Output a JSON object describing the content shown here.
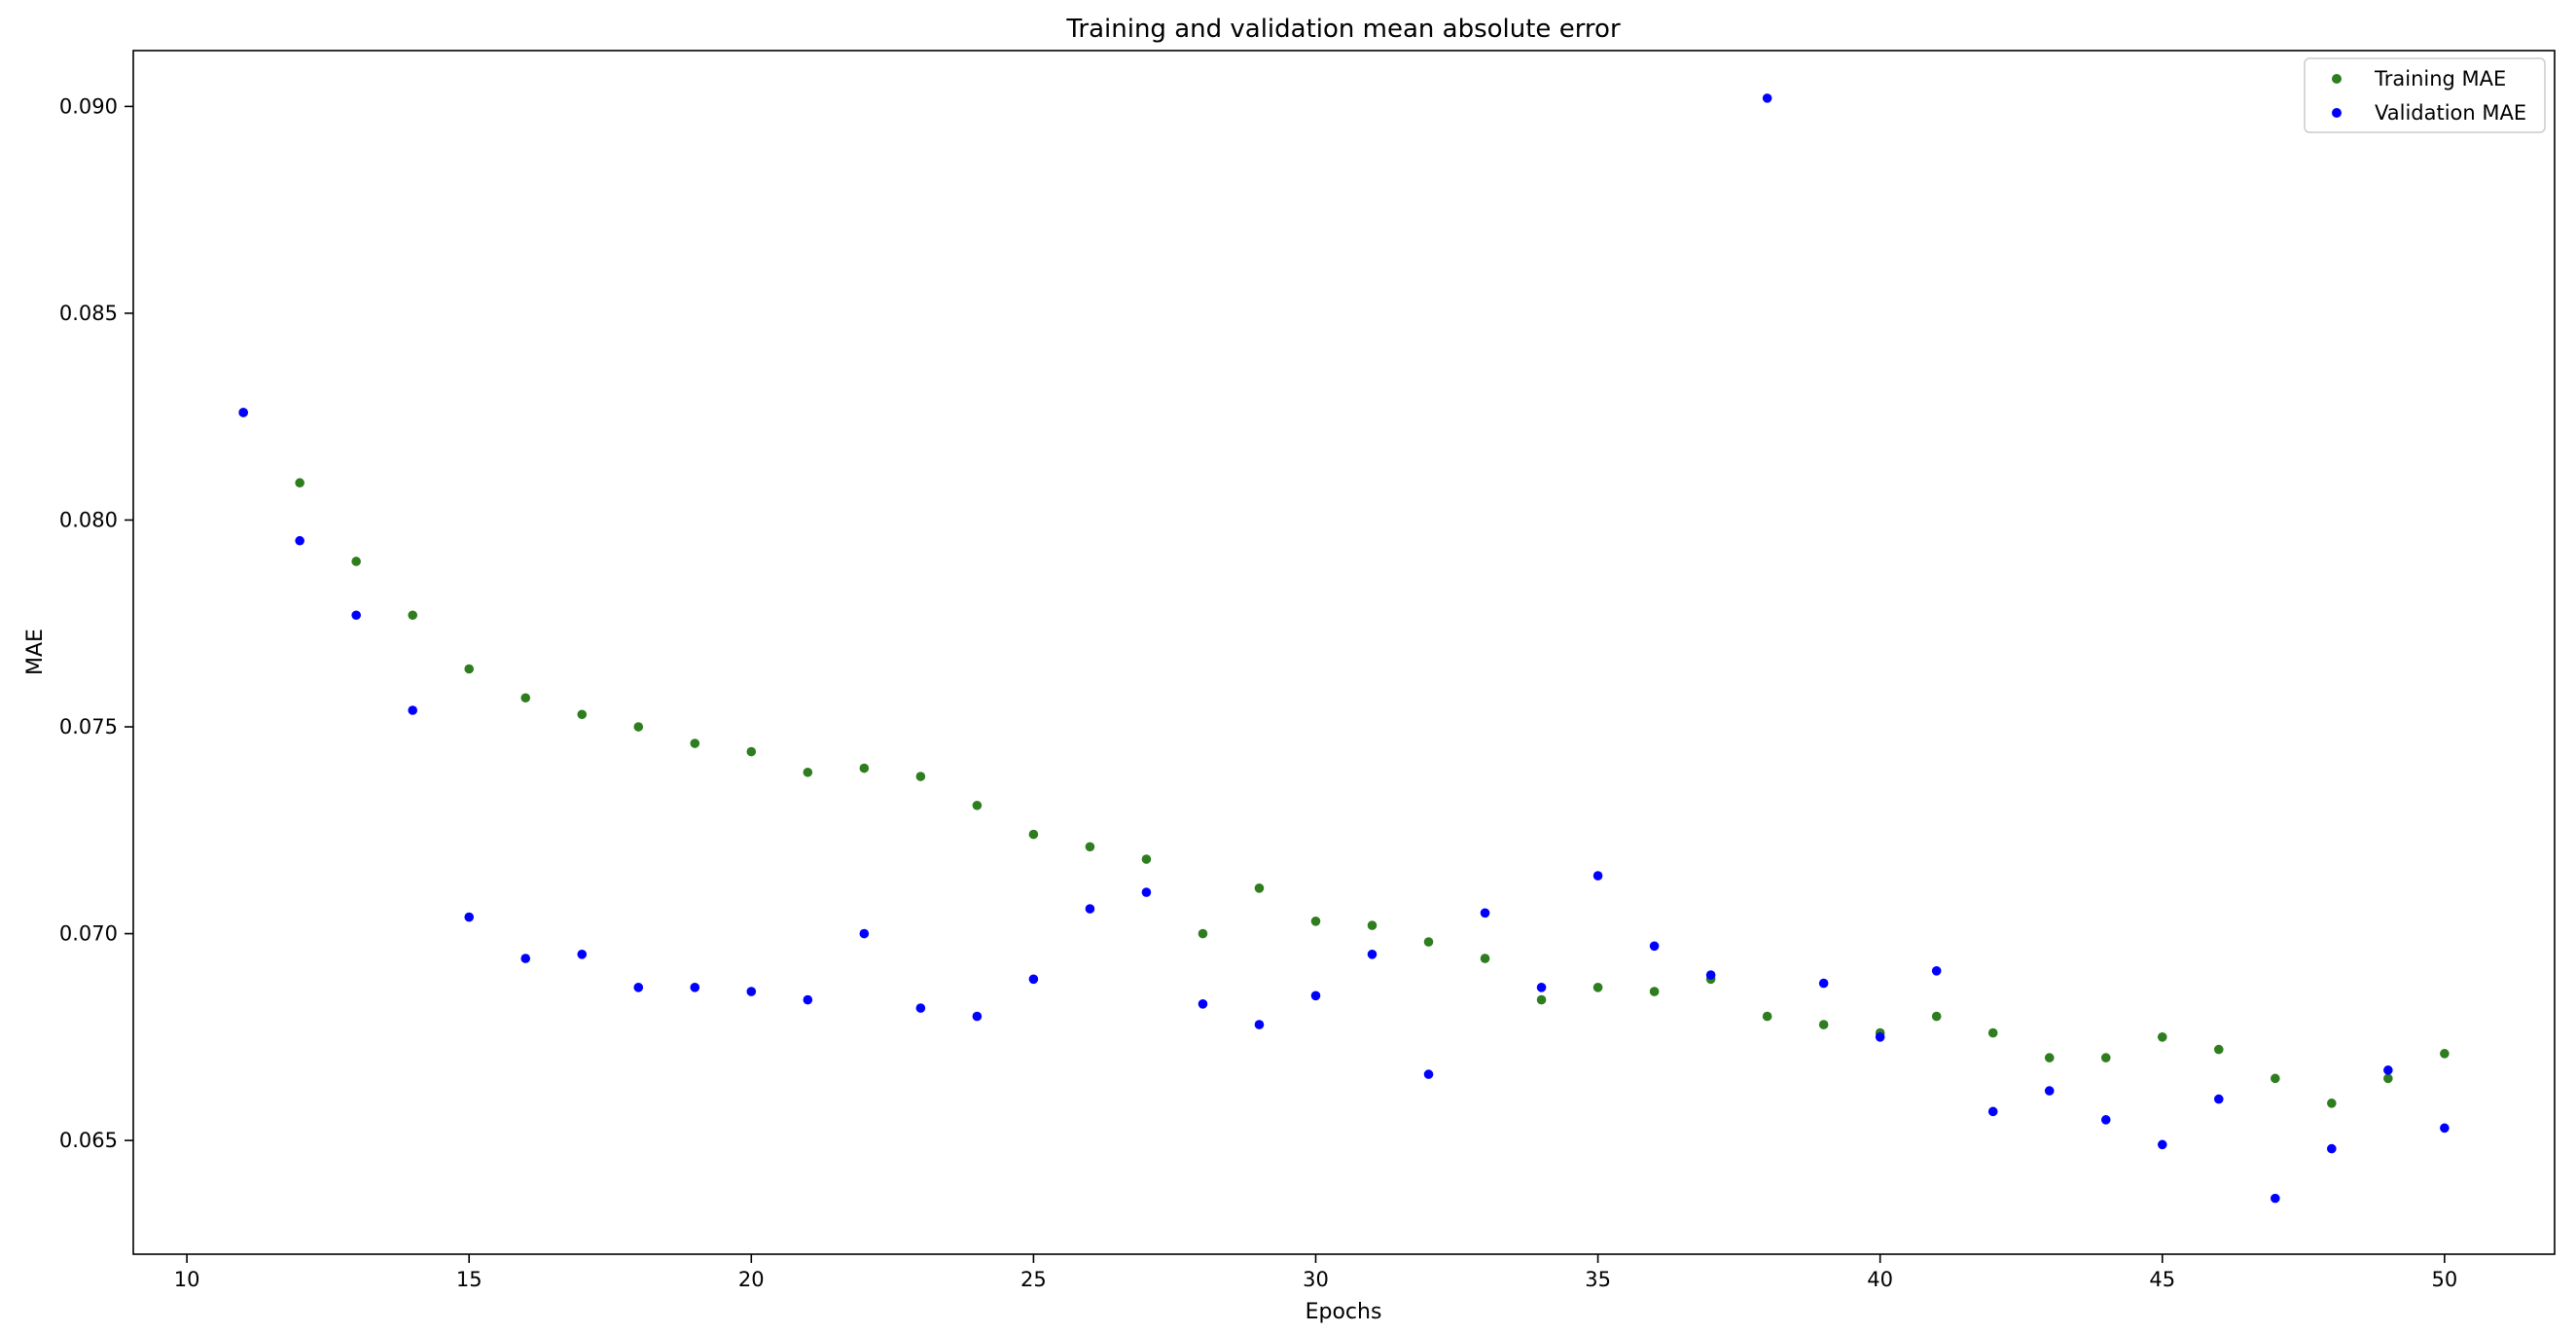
{
  "chart_data": {
    "type": "scatter",
    "title": "Training and validation mean absolute error",
    "xlabel": "Epochs",
    "ylabel": "MAE",
    "xlim": [
      9.05,
      51.95
    ],
    "ylim": [
      0.06225,
      0.09135
    ],
    "xticks": [
      10,
      15,
      20,
      25,
      30,
      35,
      40,
      45,
      50
    ],
    "yticks": [
      0.065,
      0.07,
      0.075,
      0.08,
      0.085,
      0.09
    ],
    "xtick_labels": [
      "10",
      "15",
      "20",
      "25",
      "30",
      "35",
      "40",
      "45",
      "50"
    ],
    "ytick_labels": [
      "0.065",
      "0.070",
      "0.075",
      "0.080",
      "0.085",
      "0.090"
    ],
    "grid": false,
    "legend_position": "upper right",
    "x": [
      11,
      12,
      13,
      14,
      15,
      16,
      17,
      18,
      19,
      20,
      21,
      22,
      23,
      24,
      25,
      26,
      27,
      28,
      29,
      30,
      31,
      32,
      33,
      34,
      35,
      36,
      37,
      38,
      39,
      40,
      41,
      42,
      43,
      44,
      45,
      46,
      47,
      48,
      49,
      50
    ],
    "series": [
      {
        "name": "Training MAE",
        "color": "#2e7d1e",
        "marker": "dot",
        "values": [
          0.0826,
          0.0809,
          0.079,
          0.0777,
          0.0764,
          0.0757,
          0.0753,
          0.075,
          0.0746,
          0.0744,
          0.0739,
          0.074,
          0.0738,
          0.0731,
          0.0724,
          0.0721,
          0.0718,
          0.07,
          0.0711,
          0.0703,
          0.0702,
          0.0698,
          0.0694,
          0.0684,
          0.0687,
          0.0686,
          0.0689,
          0.068,
          0.0678,
          0.0676,
          0.068,
          0.0676,
          0.067,
          0.067,
          0.0675,
          0.0672,
          0.0665,
          0.0659,
          0.0665,
          0.0671
        ]
      },
      {
        "name": "Validation MAE",
        "color": "#0000ff",
        "marker": "dot",
        "values": [
          0.0826,
          0.0795,
          0.0777,
          0.0754,
          0.0704,
          0.0694,
          0.0695,
          0.0687,
          0.0687,
          0.0686,
          0.0684,
          0.07,
          0.0682,
          0.068,
          0.0689,
          0.0706,
          0.071,
          0.0683,
          0.0678,
          0.0685,
          0.0695,
          0.0666,
          0.0705,
          0.0687,
          0.0714,
          0.0697,
          0.069,
          0.0902,
          0.0688,
          0.0675,
          0.0691,
          0.0657,
          0.0662,
          0.0655,
          0.0649,
          0.066,
          0.0636,
          0.0648,
          0.0667,
          0.0653
        ]
      }
    ]
  }
}
